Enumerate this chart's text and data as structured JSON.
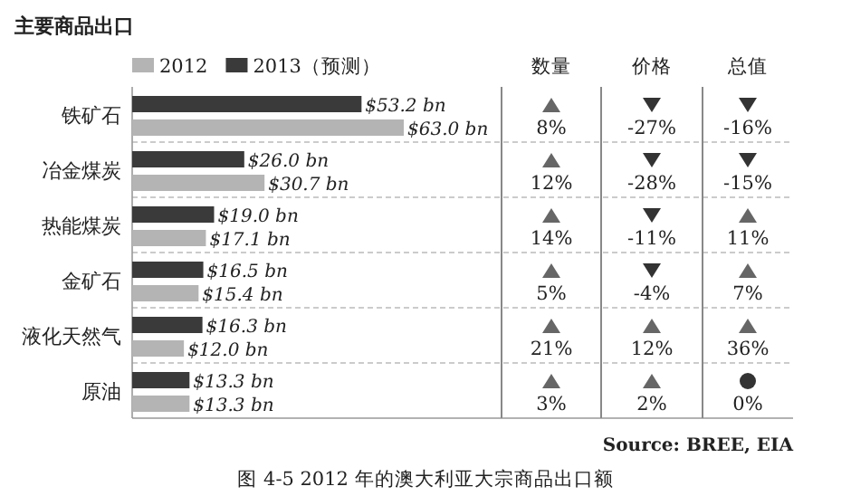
{
  "chart_data": [
    {
      "type": "bar",
      "orientation": "horizontal",
      "title": "主要商品出口",
      "legend": "top left",
      "categories": [
        "铁矿石",
        "冶金煤炭",
        "热能煤炭",
        "金矿石",
        "液化天然气",
        "原油"
      ],
      "series": [
        {
          "name": "2012",
          "color": "#b4b4b4",
          "values": [
            63.0,
            30.7,
            17.1,
            15.4,
            12.0,
            13.3
          ],
          "value_labels": [
            "$63.0 bn",
            "$30.7 bn",
            "$17.1 bn",
            "$15.4 bn",
            "$12.0 bn",
            "$13.3 bn"
          ]
        },
        {
          "name": "2013（预测）",
          "color": "#3a3a3a",
          "values": [
            53.2,
            26.0,
            19.0,
            16.5,
            16.3,
            13.3
          ],
          "value_labels": [
            "$53.2 bn",
            "$26.0 bn",
            "$19.0 bn",
            "$16.5 bn",
            "$16.3 bn",
            "$13.3 bn"
          ]
        }
      ],
      "annotations": [
        "Source: BREE, EIA",
        "图 4-5 2012 年的澳大利亚大宗商品出口额"
      ]
    },
    {
      "type": "other",
      "categories": [
        "数量",
        "价格",
        "总值"
      ],
      "cell_labels": [
        [
          "8%",
          "-27%",
          "-16%"
        ],
        [
          "12%",
          "-28%",
          "-15%"
        ],
        [
          "14%",
          "-11%",
          "11%"
        ],
        [
          "5%",
          "-4%",
          "7%"
        ],
        [
          "21%",
          "12%",
          "36%"
        ],
        [
          "3%",
          "2%",
          "0%"
        ]
      ]
    }
  ]
}
